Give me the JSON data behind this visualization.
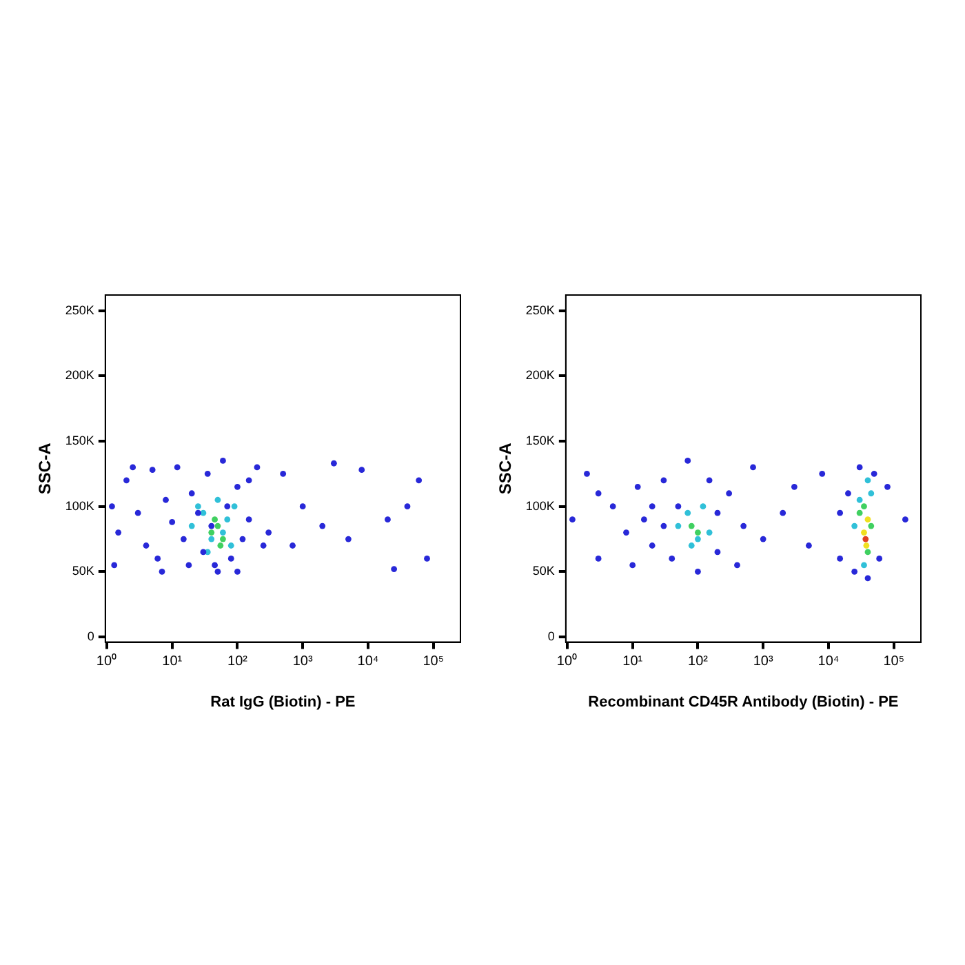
{
  "chart_data": [
    {
      "type": "scatter",
      "xlabel": "Rat IgG (Biotin) - PE",
      "ylabel": "SSC-A",
      "log": "x",
      "grid": false,
      "legend": false,
      "marker": "circle",
      "xlim": [
        0.95,
        260000
      ],
      "xticks": [
        {
          "value": 1,
          "label": "10⁰"
        },
        {
          "value": 10,
          "label": "10¹"
        },
        {
          "value": 100,
          "label": "10²"
        },
        {
          "value": 1000,
          "label": "10³"
        },
        {
          "value": 10000,
          "label": "10⁴"
        },
        {
          "value": 100000,
          "label": "10⁵"
        }
      ],
      "ylim": [
        -4000,
        262000
      ],
      "yticks": [
        {
          "value": 0,
          "label": "0"
        },
        {
          "value": 50000,
          "label": "50K"
        },
        {
          "value": 100000,
          "label": "100K"
        },
        {
          "value": 150000,
          "label": "150K"
        },
        {
          "value": 200000,
          "label": "200K"
        },
        {
          "value": 250000,
          "label": "250K"
        }
      ],
      "series": [
        {
          "color": "#2828d8",
          "x": [
            1.5,
            2,
            3,
            4,
            5,
            6,
            8,
            10,
            12,
            15,
            18,
            20,
            25,
            30,
            35,
            40,
            50,
            60,
            70,
            80,
            100,
            120,
            150,
            200,
            250,
            300,
            500,
            700,
            1000,
            2000,
            3000,
            5000,
            8000,
            20000,
            40000,
            60000,
            80000,
            25000,
            1.2,
            1.3,
            2.5,
            7,
            100,
            150,
            45
          ],
          "values": [
            80000,
            120000,
            95000,
            70000,
            128000,
            60000,
            105000,
            88000,
            130000,
            75000,
            55000,
            110000,
            95000,
            65000,
            125000,
            85000,
            50000,
            135000,
            100000,
            60000,
            115000,
            75000,
            90000,
            130000,
            70000,
            80000,
            125000,
            70000,
            100000,
            85000,
            133000,
            75000,
            128000,
            90000,
            100000,
            120000,
            60000,
            52000,
            100000,
            55000,
            130000,
            50000,
            50000,
            120000,
            55000
          ]
        },
        {
          "color": "#30c0d8",
          "x": [
            20,
            30,
            40,
            50,
            60,
            70,
            80,
            35,
            90,
            25
          ],
          "values": [
            85000,
            95000,
            75000,
            105000,
            80000,
            90000,
            70000,
            65000,
            100000,
            100000
          ]
        },
        {
          "color": "#40d060",
          "x": [
            40,
            50,
            60,
            45,
            55
          ],
          "values": [
            80000,
            85000,
            75000,
            90000,
            70000
          ]
        }
      ]
    },
    {
      "type": "scatter",
      "xlabel": "Recombinant CD45R Antibody (Biotin) - PE",
      "ylabel": "SSC-A",
      "log": "x",
      "grid": false,
      "legend": false,
      "marker": "circle",
      "xlim": [
        0.95,
        260000
      ],
      "xticks": [
        {
          "value": 1,
          "label": "10⁰"
        },
        {
          "value": 10,
          "label": "10¹"
        },
        {
          "value": 100,
          "label": "10²"
        },
        {
          "value": 1000,
          "label": "10³"
        },
        {
          "value": 10000,
          "label": "10⁴"
        },
        {
          "value": 100000,
          "label": "10⁵"
        }
      ],
      "ylim": [
        -4000,
        262000
      ],
      "yticks": [
        {
          "value": 0,
          "label": "0"
        },
        {
          "value": 50000,
          "label": "50K"
        },
        {
          "value": 100000,
          "label": "100K"
        },
        {
          "value": 150000,
          "label": "150K"
        },
        {
          "value": 200000,
          "label": "200K"
        },
        {
          "value": 250000,
          "label": "250K"
        }
      ],
      "series": [
        {
          "color": "#2828d8",
          "x": [
            1.2,
            2,
            3,
            5,
            8,
            10,
            12,
            15,
            20,
            30,
            40,
            50,
            70,
            100,
            150,
            200,
            300,
            500,
            700,
            1000,
            2000,
            3000,
            5000,
            8000,
            15000,
            20000,
            25000,
            30000,
            40000,
            50000,
            60000,
            80000,
            150000,
            20,
            200,
            30,
            400,
            15000,
            3
          ],
          "values": [
            90000,
            125000,
            60000,
            100000,
            80000,
            55000,
            115000,
            90000,
            70000,
            120000,
            60000,
            100000,
            135000,
            50000,
            120000,
            65000,
            110000,
            85000,
            130000,
            75000,
            95000,
            115000,
            70000,
            125000,
            60000,
            110000,
            50000,
            130000,
            45000,
            125000,
            60000,
            115000,
            90000,
            100000,
            95000,
            85000,
            55000,
            95000,
            110000
          ]
        },
        {
          "color": "#30c0d8",
          "x": [
            50,
            70,
            100,
            120,
            150,
            80,
            30000,
            45000,
            25000,
            35000,
            40000
          ],
          "values": [
            85000,
            95000,
            75000,
            100000,
            80000,
            70000,
            105000,
            110000,
            85000,
            55000,
            120000
          ]
        },
        {
          "color": "#40d060",
          "x": [
            80,
            100,
            30000,
            40000,
            35000,
            45000
          ],
          "values": [
            85000,
            80000,
            95000,
            65000,
            100000,
            85000
          ]
        },
        {
          "color": "#f0e020",
          "x": [
            35000,
            40000,
            38000
          ],
          "values": [
            80000,
            90000,
            70000
          ]
        },
        {
          "color": "#e04020",
          "x": [
            37000
          ],
          "values": [
            75000
          ]
        }
      ]
    }
  ]
}
